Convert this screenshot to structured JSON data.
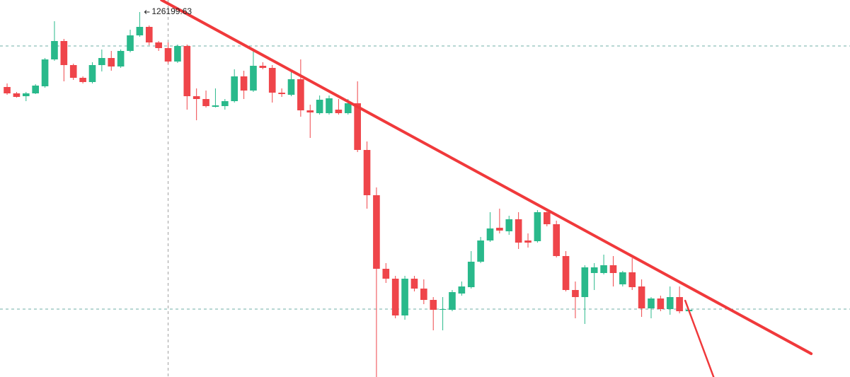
{
  "chart_data": {
    "type": "candlestick",
    "xlim": [
      -0.75,
      89
    ],
    "ylim": [
      100400,
      127050
    ],
    "up_color": "#29b98b",
    "down_color": "#ef454a",
    "open": [
      120900,
      120450,
      120250,
      120450,
      120950,
      122850,
      124150,
      122450,
      121550,
      121250,
      122450,
      122950,
      122350,
      123450,
      124550,
      125150,
      124050,
      123650,
      122700,
      123800,
      120250,
      120050,
      119500,
      119550,
      119900,
      121650,
      120650,
      122400,
      122250,
      120500,
      120350,
      121450,
      119250,
      119050,
      119050,
      119300,
      119050,
      119750,
      116450,
      113250,
      108050,
      107350,
      104750,
      107350,
      106650,
      105850,
      105150,
      105150,
      106300,
      106750,
      108550,
      110050,
      110950,
      110700,
      111550,
      110050,
      110000,
      112050,
      111200,
      108950,
      106550,
      106050,
      107750,
      107750,
      108300,
      106950,
      107800,
      106800,
      105250,
      105950,
      105200,
      106050,
      105050
    ],
    "high": [
      121150,
      120550,
      120550,
      121100,
      122950,
      125550,
      124300,
      122550,
      121650,
      122650,
      123550,
      123450,
      123550,
      124950,
      126199.63,
      125250,
      124150,
      124050,
      123900,
      123900,
      120800,
      120650,
      120800,
      120050,
      122150,
      122050,
      123550,
      122650,
      122450,
      120800,
      122050,
      122850,
      119650,
      120300,
      120300,
      120050,
      120050,
      121300,
      117050,
      113800,
      108450,
      107550,
      107550,
      107550,
      107300,
      106050,
      106050,
      106550,
      107150,
      109300,
      110300,
      112050,
      112300,
      111800,
      112050,
      110550,
      112200,
      112200,
      111450,
      109300,
      107150,
      108300,
      108450,
      109050,
      108950,
      107900,
      108800,
      107300,
      106050,
      106150,
      106800,
      106800,
      105200
    ],
    "low": [
      120350,
      120150,
      119900,
      120400,
      120850,
      122750,
      121300,
      121400,
      121150,
      121150,
      122000,
      122050,
      122250,
      123350,
      124450,
      123850,
      123450,
      122550,
      122600,
      119300,
      118550,
      119450,
      119450,
      119300,
      119800,
      120050,
      120550,
      122150,
      119800,
      120200,
      120250,
      118800,
      117300,
      118950,
      118950,
      118950,
      118950,
      116300,
      112300,
      100400,
      107050,
      104550,
      104450,
      106450,
      105550,
      103700,
      103700,
      105050,
      106150,
      106650,
      108450,
      109950,
      110550,
      110450,
      109450,
      109550,
      109900,
      111050,
      108850,
      106450,
      104550,
      104150,
      106550,
      107650,
      106800,
      106800,
      106550,
      104650,
      104550,
      105050,
      104800,
      104900,
      105000
    ],
    "close": [
      120450,
      120200,
      120450,
      121000,
      122850,
      124150,
      122450,
      121550,
      121250,
      122450,
      122950,
      122350,
      123450,
      124550,
      125150,
      124050,
      123650,
      122700,
      123800,
      120250,
      120050,
      119550,
      119600,
      119900,
      121650,
      120650,
      122400,
      122250,
      120500,
      120400,
      121450,
      119250,
      119100,
      120000,
      120100,
      119050,
      119750,
      116450,
      113250,
      108050,
      107350,
      104750,
      107350,
      106650,
      105850,
      105150,
      105200,
      106400,
      106800,
      108550,
      110050,
      110900,
      110750,
      111550,
      109900,
      109900,
      112050,
      111200,
      108950,
      106550,
      106050,
      108150,
      108150,
      108300,
      107750,
      107800,
      106750,
      105250,
      105950,
      105200,
      106050,
      105050,
      105150
    ],
    "hlines": [
      123800,
      105200
    ],
    "vline": 17,
    "guide_color": "#4c9c92",
    "lines": [
      {
        "x": [
          16.3,
          84.9
        ],
        "y": [
          127050,
          102050
        ],
        "color": "#f0393b"
      },
      {
        "x": [
          71.6,
          74.6
        ],
        "y": [
          105800,
          100400
        ],
        "color": "#f0393b"
      }
    ]
  }
}
